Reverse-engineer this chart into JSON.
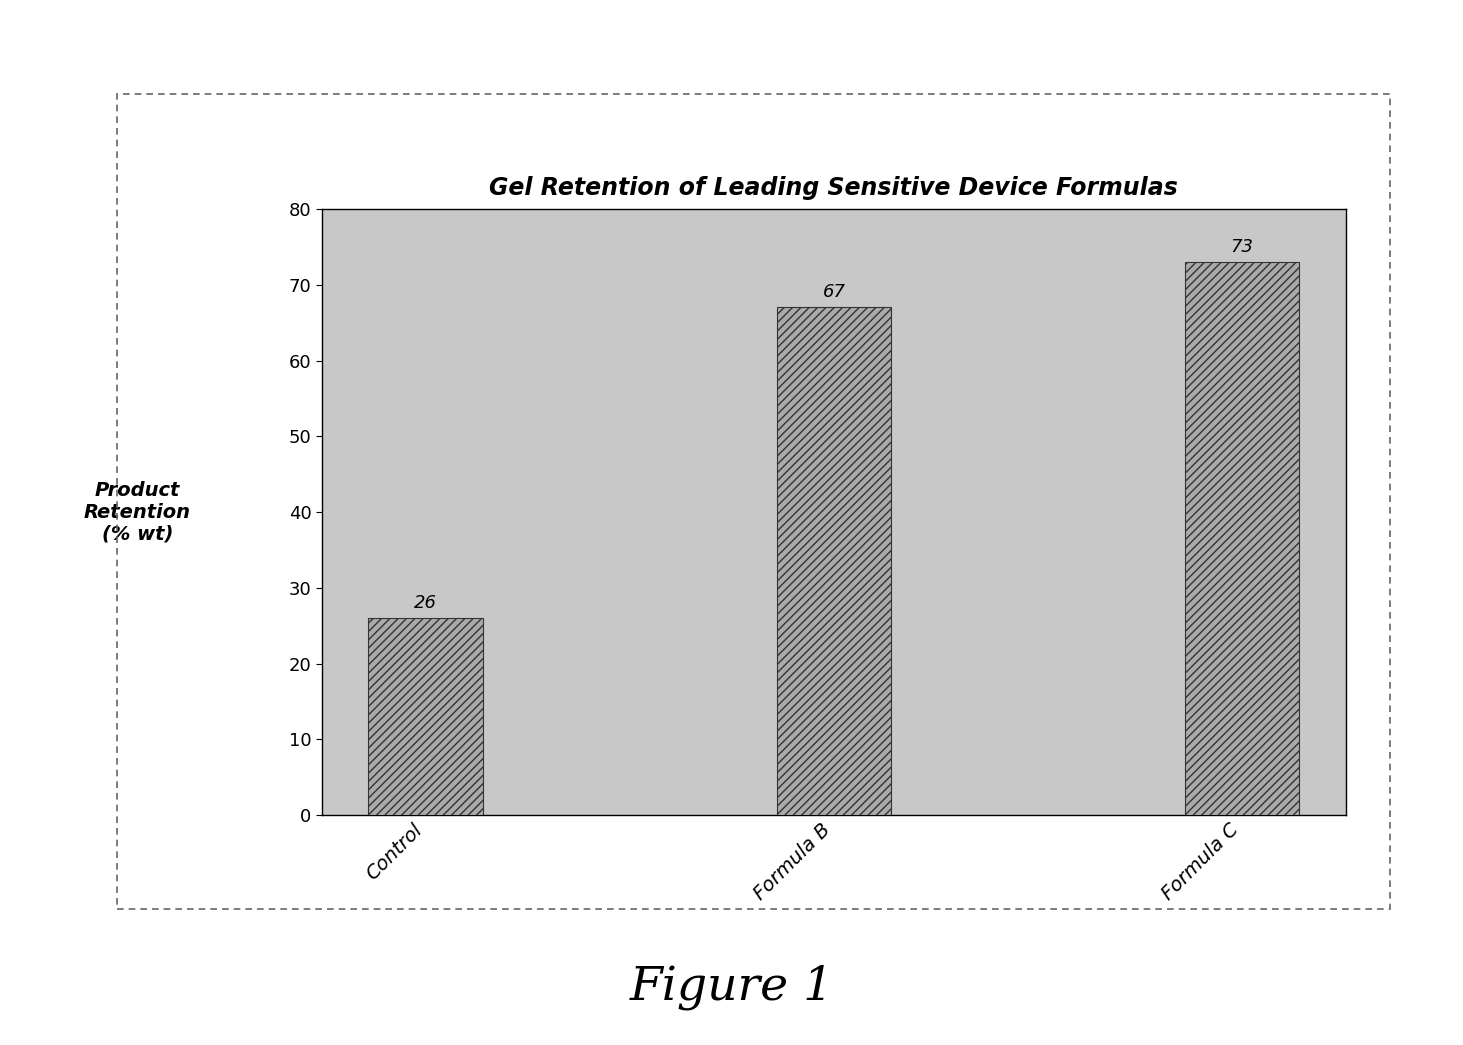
{
  "title": "Gel Retention of Leading Sensitive Device Formulas",
  "categories": [
    "Control",
    "Formula B",
    "Formula C"
  ],
  "values": [
    26,
    67,
    73
  ],
  "bar_labels": [
    "26",
    "67",
    "73"
  ],
  "ylabel_line1": "Product",
  "ylabel_line2": "Retention",
  "ylabel_line3": "(% wt)",
  "ylim": [
    0,
    80
  ],
  "yticks": [
    0,
    10,
    20,
    30,
    40,
    50,
    60,
    70,
    80
  ],
  "bar_color": "#b0b0b0",
  "bar_hatch": "////",
  "plot_bg_color": "#c8c8c8",
  "figure_caption": "Figure 1",
  "title_fontsize": 17,
  "label_fontsize": 14,
  "tick_fontsize": 13,
  "bar_label_fontsize": 13,
  "caption_fontsize": 34,
  "bar_width": 0.28
}
